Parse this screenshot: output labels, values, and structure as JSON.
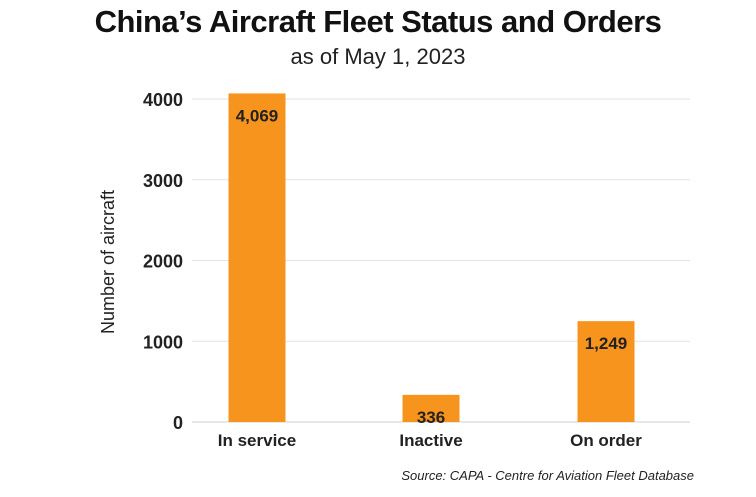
{
  "chart_data": {
    "type": "bar",
    "title": "China’s Aircraft Fleet Status and Orders",
    "subtitle": "as of May 1, 2023",
    "categories": [
      "In service",
      "Inactive",
      "On order"
    ],
    "values": [
      4069,
      336,
      1249
    ],
    "data_labels": [
      "4,069",
      "336",
      "1,249"
    ],
    "xlabel": "",
    "ylabel": "Number of aircraft",
    "ylim": [
      0,
      4000
    ],
    "yticks": [
      0,
      1000,
      2000,
      3000,
      4000
    ],
    "grid": true,
    "bar_color": "#F7941D",
    "source": "Source: CAPA - Centre for Aviation Fleet Database"
  }
}
